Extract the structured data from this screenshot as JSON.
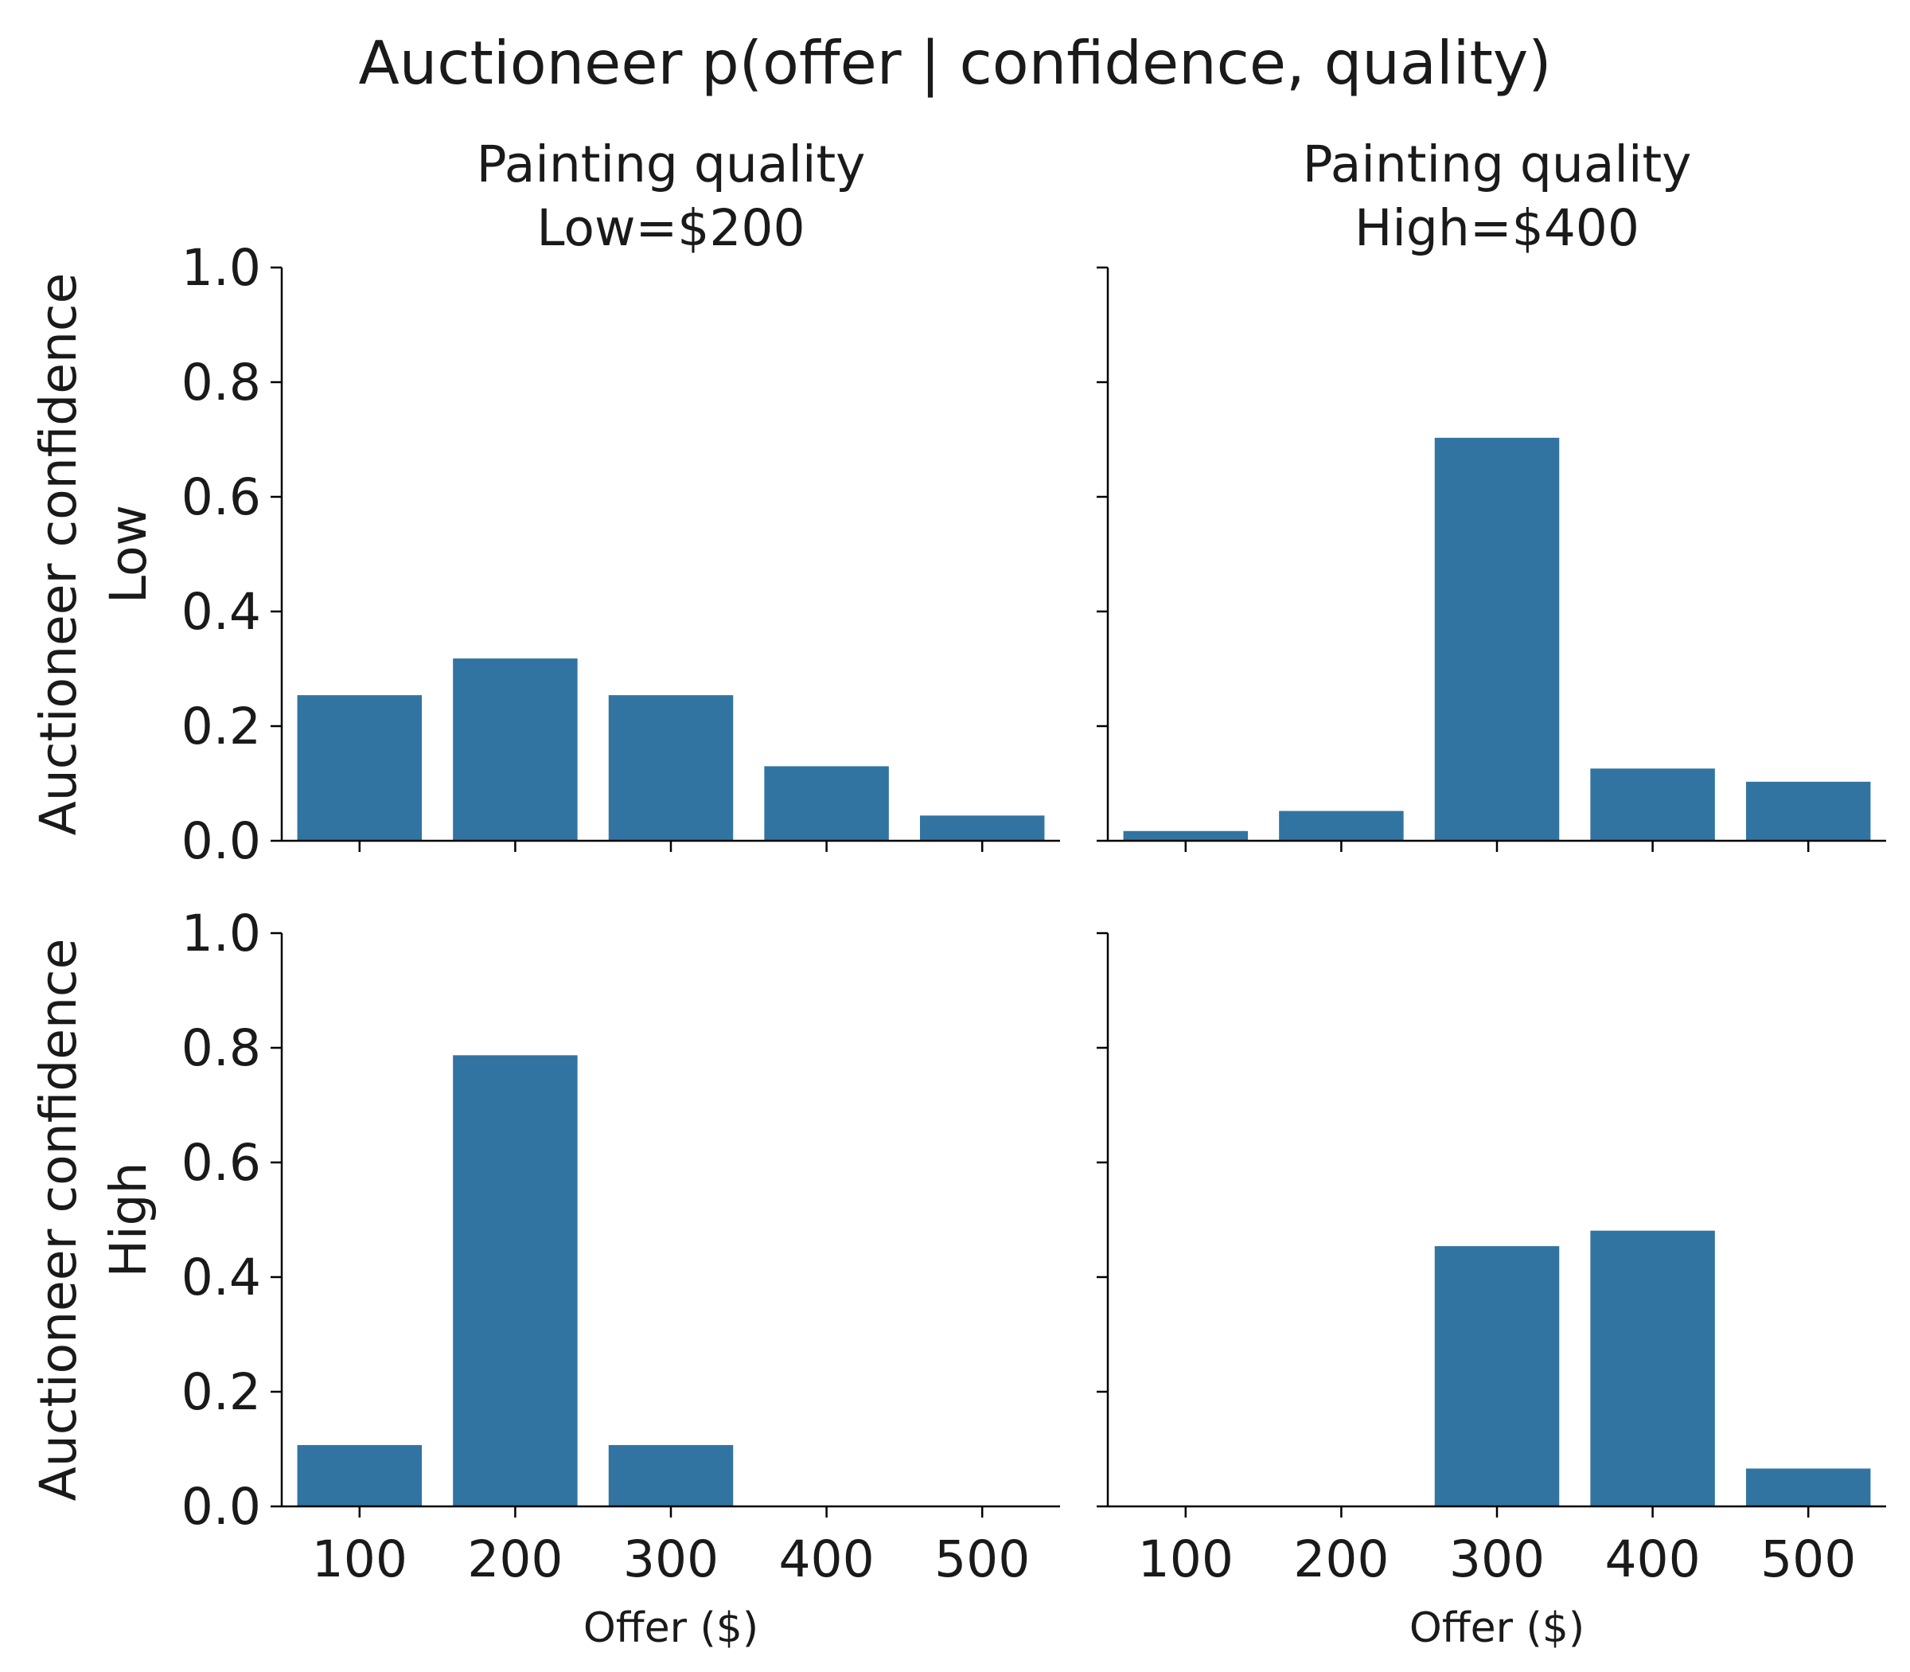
{
  "chart_data": {
    "type": "bar",
    "title": "Auctioneer p(offer | confidence, quality)",
    "categories": [
      "100",
      "200",
      "300",
      "400",
      "500"
    ],
    "ylim": [
      0,
      1.0
    ],
    "yticks": [
      "0.0",
      "0.2",
      "0.4",
      "0.6",
      "0.8",
      "1.0"
    ],
    "xlabel": "Offer ($)",
    "bar_color": "#3274a1",
    "grid": false,
    "col_titles": [
      {
        "line1": "Painting quality",
        "line2": "Low=$200"
      },
      {
        "line1": "Painting quality",
        "line2": "High=$400"
      }
    ],
    "row_labels": [
      {
        "line1": "Auctioneer confidence",
        "line2": "Low"
      },
      {
        "line1": "Auctioneer confidence",
        "line2": "High"
      }
    ],
    "panels": [
      {
        "row": 0,
        "col": 0,
        "values": [
          0.254,
          0.318,
          0.254,
          0.13,
          0.044
        ]
      },
      {
        "row": 0,
        "col": 1,
        "values": [
          0.017,
          0.052,
          0.703,
          0.126,
          0.103
        ]
      },
      {
        "row": 1,
        "col": 0,
        "values": [
          0.107,
          0.787,
          0.107,
          0.0,
          0.0
        ]
      },
      {
        "row": 1,
        "col": 1,
        "values": [
          0.0,
          0.0,
          0.454,
          0.481,
          0.066
        ]
      }
    ]
  }
}
